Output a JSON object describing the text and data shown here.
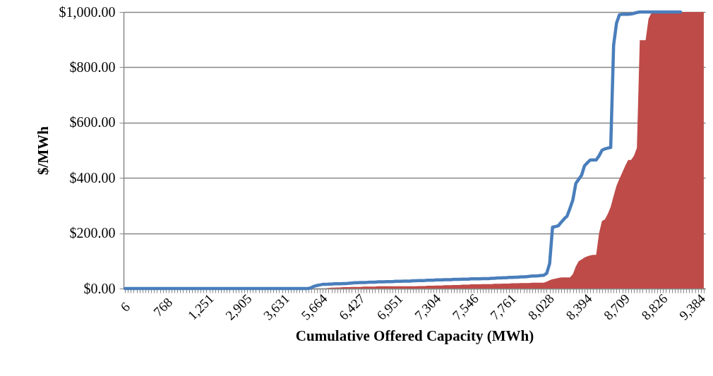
{
  "chart_data": {
    "type": "line",
    "xlabel": "Cumulative Offered Capacity (MWh)",
    "ylabel": "$/MWh",
    "categories": [
      "6",
      null,
      null,
      null,
      null,
      null,
      null,
      null,
      null,
      null,
      null,
      null,
      null,
      "768",
      null,
      null,
      null,
      null,
      null,
      null,
      null,
      null,
      null,
      null,
      null,
      null,
      "1,251",
      null,
      null,
      null,
      null,
      null,
      null,
      null,
      null,
      null,
      null,
      null,
      null,
      "2,905",
      null,
      null,
      null,
      null,
      null,
      null,
      null,
      null,
      null,
      null,
      null,
      null,
      "3,631",
      null,
      null,
      null,
      null,
      null,
      null,
      null,
      null,
      null,
      null,
      null,
      null,
      "5,664",
      null,
      null,
      null,
      null,
      null,
      null,
      null,
      null,
      null,
      null,
      null,
      null,
      "6,427",
      null,
      null,
      null,
      null,
      null,
      null,
      null,
      null,
      null,
      null,
      null,
      null,
      "6,951",
      null,
      null,
      null,
      null,
      null,
      null,
      null,
      null,
      null,
      null,
      null,
      null,
      "7,304",
      null,
      null,
      null,
      null,
      null,
      null,
      null,
      null,
      null,
      null,
      null,
      null,
      "7,546",
      null,
      null,
      null,
      null,
      null,
      null,
      null,
      null,
      null,
      null,
      null,
      null,
      "7,761",
      null,
      null,
      null,
      null,
      null,
      null,
      null,
      null,
      null,
      null,
      null,
      null,
      "8,028",
      null,
      null,
      null,
      null,
      null,
      null,
      null,
      null,
      null,
      null,
      null,
      null,
      "8,394",
      null,
      null,
      null,
      null,
      null,
      null,
      null,
      null,
      null,
      null,
      null,
      null,
      "8,709",
      null,
      null,
      null,
      null,
      null,
      null,
      null,
      null,
      null,
      null,
      null,
      null,
      "8,826",
      null,
      null,
      null,
      null,
      null,
      null,
      null,
      null,
      null,
      null,
      null,
      null,
      "9,384",
      null,
      null,
      null,
      null
    ],
    "series": [
      {
        "type": "area",
        "color": "#be4b48",
        "values": [
          0,
          0,
          0,
          0,
          0,
          0,
          0,
          0,
          0,
          0,
          0,
          0,
          0,
          0,
          0,
          0,
          0,
          0,
          0,
          0,
          0,
          0,
          0,
          0,
          0,
          0,
          0,
          0,
          0,
          0,
          0,
          0,
          0,
          0,
          0,
          0,
          0,
          0,
          0,
          0,
          0,
          0,
          0,
          0,
          0,
          0,
          0,
          0,
          0,
          0,
          0,
          0,
          0,
          0,
          0,
          0,
          0,
          0,
          0,
          0,
          0,
          0,
          0,
          0,
          0,
          0,
          0,
          0,
          0,
          0,
          2,
          3,
          3,
          4,
          4,
          5,
          5,
          5,
          6,
          6,
          6,
          6,
          7,
          7,
          7,
          7,
          7,
          8,
          8,
          8,
          8,
          8,
          8,
          8,
          8,
          8,
          8,
          8,
          8,
          8,
          8,
          9,
          9,
          9,
          10,
          10,
          10,
          11,
          11,
          11,
          12,
          12,
          12,
          13,
          13,
          13,
          14,
          14,
          14,
          15,
          15,
          15,
          15,
          16,
          16,
          16,
          16,
          17,
          17,
          17,
          18,
          18,
          18,
          19,
          19,
          19,
          20,
          20,
          20,
          20,
          21,
          21,
          21,
          21,
          21,
          25,
          30,
          34,
          36,
          38,
          40,
          40,
          40,
          40,
          52,
          80,
          99,
          105,
          112,
          117,
          120,
          122,
          122,
          200,
          244,
          250,
          270,
          295,
          335,
          372,
          397,
          420,
          444,
          465,
          465,
          480,
          508,
          898,
          898,
          898,
          975,
          997,
          1000,
          1000,
          1000,
          1000,
          1000,
          1000,
          1000,
          1000,
          1000,
          1000,
          1000,
          1000,
          1000,
          1000,
          1000,
          1000,
          1000,
          1000
        ]
      },
      {
        "color": "#4a7ebb",
        "values": [
          0,
          0,
          0,
          0,
          0,
          0,
          0,
          0,
          0,
          0,
          0,
          0,
          0,
          0,
          0,
          0,
          0,
          0,
          0,
          0,
          0,
          0,
          0,
          0,
          0,
          0,
          0,
          0,
          0,
          0,
          0,
          0,
          0,
          0,
          0,
          0,
          0,
          0,
          0,
          0,
          0,
          0,
          0,
          0,
          0,
          0,
          0,
          0,
          0,
          0,
          0,
          0,
          0,
          0,
          0,
          0,
          0,
          0,
          0,
          0,
          0,
          0,
          0,
          0,
          3,
          8,
          11,
          13,
          15,
          15,
          16,
          16,
          17,
          17,
          17,
          18,
          18,
          19,
          20,
          21,
          21,
          22,
          22,
          22,
          23,
          23,
          23,
          24,
          24,
          24,
          25,
          25,
          25,
          26,
          26,
          26,
          27,
          27,
          27,
          28,
          28,
          29,
          29,
          29,
          30,
          30,
          30,
          31,
          31,
          31,
          32,
          32,
          32,
          33,
          33,
          33,
          34,
          34,
          34,
          35,
          35,
          35,
          35,
          36,
          36,
          36,
          37,
          37,
          38,
          38,
          39,
          39,
          40,
          40,
          41,
          41,
          42,
          42,
          43,
          44,
          45,
          45,
          46,
          47,
          48,
          55,
          90,
          222,
          224,
          227,
          240,
          252,
          262,
          290,
          321,
          380,
          395,
          410,
          444,
          455,
          465,
          465,
          465,
          480,
          500,
          505,
          508,
          510,
          880,
          960,
          990,
          992,
          992,
          992,
          993,
          995,
          998,
          1000,
          1000,
          1000,
          1000,
          1000,
          1000,
          1000,
          1000,
          1000,
          1000,
          1000,
          1000,
          1000,
          1000,
          1000,
          null,
          null,
          null,
          null,
          null,
          null,
          null,
          null
        ]
      }
    ],
    "ylim": [
      0,
      1000
    ],
    "yticks": [
      {
        "value": 0,
        "label": "$0.00"
      },
      {
        "value": 200,
        "label": "$200.00"
      },
      {
        "value": 400,
        "label": "$400.00"
      },
      {
        "value": 600,
        "label": "$600.00"
      },
      {
        "value": 800,
        "label": "$800.00"
      },
      {
        "value": 1000,
        "label": "$1,000.00"
      }
    ],
    "grid": "y",
    "marker": "none",
    "line_style": "solid"
  }
}
